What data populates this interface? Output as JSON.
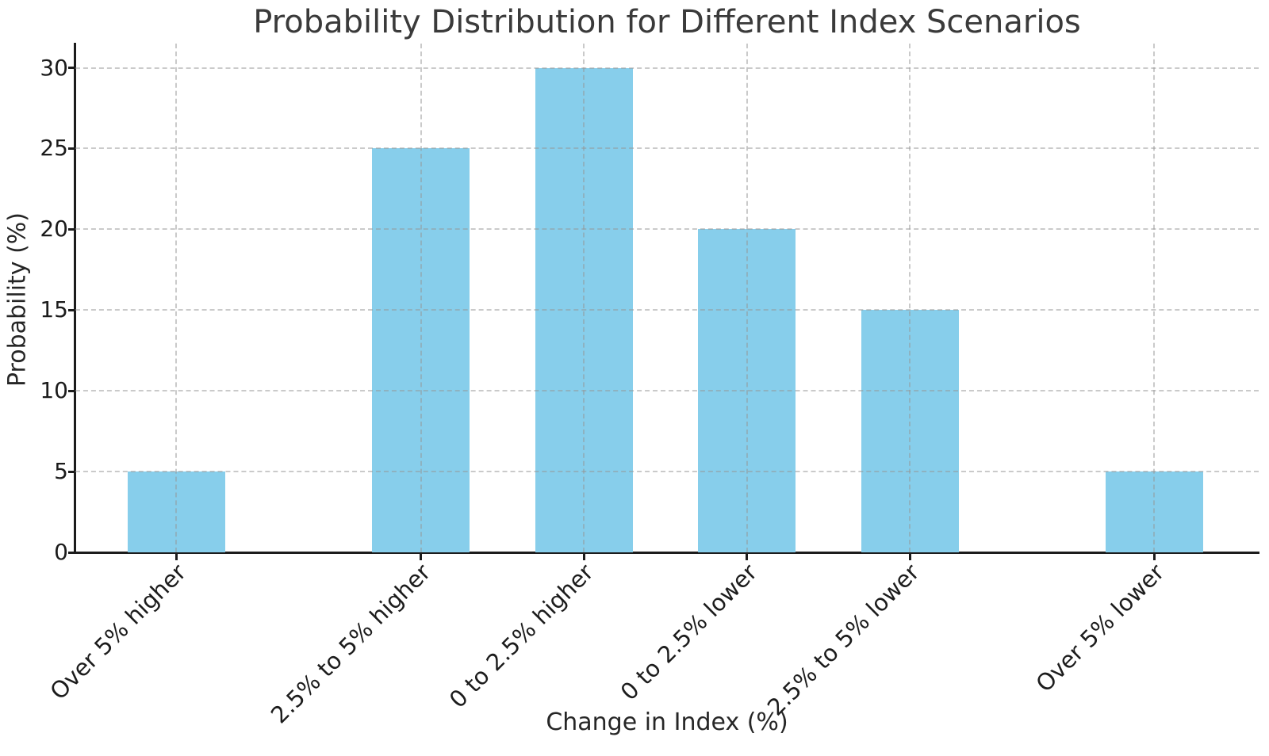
{
  "chart_data": {
    "type": "bar",
    "title": "Probability Distribution for Different Index Scenarios",
    "xlabel": "Change in Index (%)",
    "ylabel": "Probability (%)",
    "categories": [
      "Over 5% higher",
      "2.5% to 5% higher",
      "0 to 2.5% higher",
      "0 to 2.5% lower",
      "2.5% to 5% lower",
      "Over 5% lower"
    ],
    "values": [
      5,
      25,
      30,
      20,
      15,
      5
    ],
    "x_positions": [
      0,
      1.5,
      2.5,
      3.5,
      4.5,
      6
    ],
    "bar_width_units": 0.6,
    "yticks": [
      0,
      5,
      10,
      15,
      20,
      25,
      30
    ],
    "ylim": [
      0,
      31.5
    ],
    "xlim": [
      -0.62,
      6.64
    ],
    "grid": "dashed gridlines, horizontal at y ticks and vertical at bar centers, drawn above bars",
    "legend": "none",
    "x_tick_label_rotation_deg": 45
  },
  "colors": {
    "bar_fill": "#87CEEB",
    "grid_line": "rgba(150,150,150,0.50)",
    "spine_and_ticks": "#1c1c1c",
    "title_text": "#3a3a3a",
    "axis_label_text": "#262626",
    "tick_label_text": "#1c1c1c",
    "background": "#ffffff"
  }
}
